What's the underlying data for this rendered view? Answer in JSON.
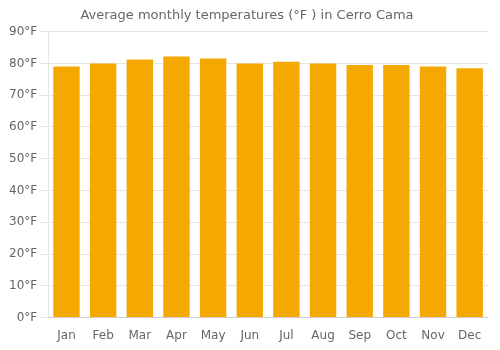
{
  "chart_data": {
    "type": "bar",
    "title": "Average monthly temperatures (°F ) in Cerro Cama",
    "categories": [
      "Jan",
      "Feb",
      "Mar",
      "Apr",
      "May",
      "Jun",
      "Jul",
      "Aug",
      "Sep",
      "Oct",
      "Nov",
      "Dec"
    ],
    "values": [
      79.0,
      80.0,
      81.2,
      82.2,
      81.5,
      80.0,
      80.5,
      80.0,
      79.5,
      79.5,
      79.0,
      78.5
    ],
    "color": "#F5A800",
    "ylim": [
      0,
      90
    ],
    "yticks": [
      {
        "value": 0,
        "label": "0°F"
      },
      {
        "value": 10,
        "label": "10°F"
      },
      {
        "value": 20,
        "label": "20°F"
      },
      {
        "value": 30,
        "label": "30°F"
      },
      {
        "value": 40,
        "label": "40°F"
      },
      {
        "value": 50,
        "label": "50°F"
      },
      {
        "value": 60,
        "label": "60°F"
      },
      {
        "value": 70,
        "label": "70°F"
      },
      {
        "value": 80,
        "label": "80°F"
      },
      {
        "value": 90,
        "label": "90°F"
      }
    ],
    "grid": true
  }
}
